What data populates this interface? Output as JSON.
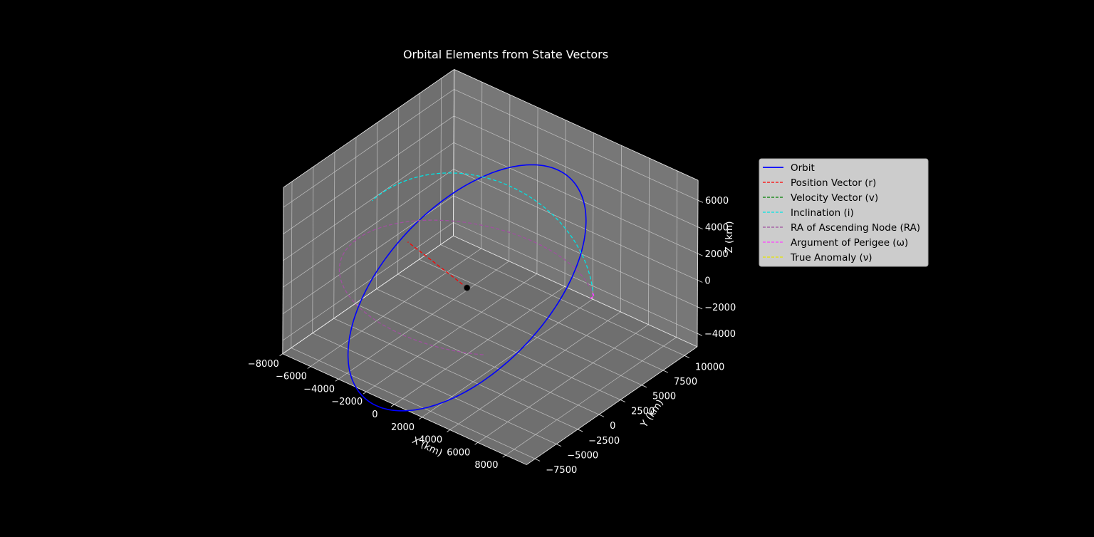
{
  "chart_data": {
    "type": "line",
    "projection": "3d",
    "title": "Orbital Elements from State Vectors",
    "xlabel": "X (km)",
    "ylabel": "Y (km)",
    "zlabel": "Z (km)",
    "xlim": [
      -8000,
      9500
    ],
    "ylim": [
      -8500,
      11500
    ],
    "zlim": [
      -5000,
      7500
    ],
    "x_ticks": [
      "−8000",
      "−6000",
      "−4000",
      "−2000",
      "0",
      "2000",
      "4000",
      "6000",
      "8000"
    ],
    "y_ticks": [
      "−7500",
      "−5000",
      "−2500",
      "0",
      "2500",
      "5000",
      "7500",
      "10000"
    ],
    "z_ticks": [
      "−4000",
      "−2000",
      "0",
      "2000",
      "4000",
      "6000"
    ],
    "grid": true,
    "legend_position": "right",
    "legend": [
      {
        "name": "Orbit",
        "color": "#0000ff",
        "style": "solid"
      },
      {
        "name": "Position Vector (r)",
        "color": "#ff0000",
        "style": "dashed"
      },
      {
        "name": "Velocity Vector (v)",
        "color": "#008000",
        "style": "dashed"
      },
      {
        "name": "Inclination (i)",
        "color": "#00e5e5",
        "style": "dashed"
      },
      {
        "name": "RA of Ascending Node (RA)",
        "color": "#a050a0",
        "style": "dashed"
      },
      {
        "name": "Argument of Perigee (ω)",
        "color": "#ff40ff",
        "style": "dashed"
      },
      {
        "name": "True Anomaly (ν)",
        "color": "#e5e500",
        "style": "dashed"
      }
    ],
    "series": [
      {
        "name": "Orbit",
        "color": "#0000ff",
        "style": "solid",
        "center": [
          0,
          0,
          0
        ],
        "u": [
          6600,
          -3200,
          800
        ],
        "v": [
          2600,
          7400,
          6400
        ]
      },
      {
        "name": "Position Vector (r)",
        "color": "#ff0000",
        "style": "dashed",
        "x": [
          0,
          -6045
        ],
        "y": [
          0,
          2932
        ],
        "z": [
          0,
          -733
        ]
      },
      {
        "name": "Inclination (i)",
        "color": "#00e5e5",
        "style": "dashed",
        "center": [
          0,
          0,
          0
        ],
        "u": [
          6000,
          5000,
          0
        ],
        "v": [
          -2200,
          2600,
          6400
        ],
        "t_range_deg": [
          0,
          135
        ]
      },
      {
        "name": "RA of Ascending Node (RA)",
        "color": "#a050a0",
        "style": "dashed",
        "center": [
          0,
          0,
          0
        ],
        "u": [
          6000,
          5000,
          0
        ],
        "v": [
          -5000,
          6000,
          0
        ],
        "t_range_deg": [
          0,
          270
        ]
      },
      {
        "name": "Argument of Perigee (ω)",
        "color": "#ff40ff",
        "style": "dashed",
        "center": [
          0,
          0,
          0
        ],
        "u": [
          6000,
          5000,
          0
        ],
        "v": [
          -400,
          -400,
          -1000
        ],
        "t_range_deg": [
          -12,
          12
        ]
      },
      {
        "name": "Central Body",
        "color": "#000000",
        "style": "point",
        "x": [
          0
        ],
        "y": [
          0
        ],
        "z": [
          0
        ]
      }
    ]
  }
}
